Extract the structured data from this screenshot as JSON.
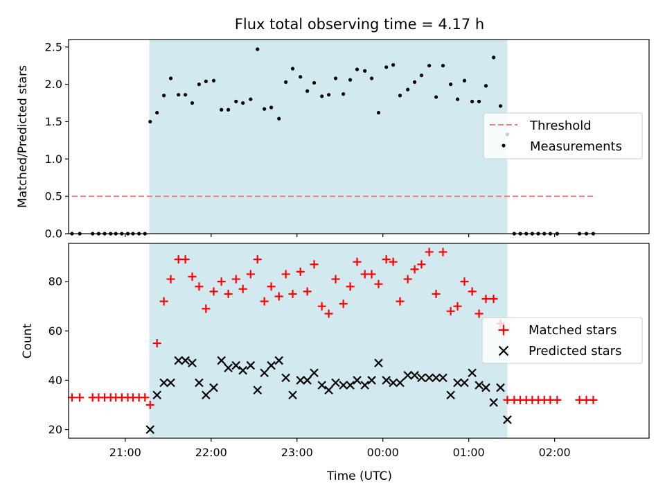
{
  "chart_data": {
    "title": "Flux total observing time = 4.17 h",
    "xlabel": "Time (UTC)",
    "x_unit": "hours UTC (times after midnight written as 24 + hour)",
    "xlim": [
      20.34,
      27.1
    ],
    "x_ticks": [
      {
        "value": 21,
        "label": "21:00"
      },
      {
        "value": 22,
        "label": "22:00"
      },
      {
        "value": 23,
        "label": "23:00"
      },
      {
        "value": 24,
        "label": "00:00"
      },
      {
        "value": 25,
        "label": "01:00"
      },
      {
        "value": 26,
        "label": "02:00"
      }
    ],
    "observing_window": {
      "start": 21.28,
      "end": 25.45,
      "color": "#d2e9f0"
    },
    "panels": [
      {
        "type": "scatter",
        "ylabel": "Matched/Predicted stars",
        "ylim": [
          0,
          2.6
        ],
        "y_ticks": [
          "0.0",
          "0.5",
          "1.0",
          "1.5",
          "2.0",
          "2.5"
        ],
        "legend_position": "center-right",
        "series": [
          {
            "name": "Threshold",
            "kind": "dashed-line",
            "color": "#f08080",
            "x": [
              20.38,
              26.45
            ],
            "values": [
              0.5,
              0.5
            ]
          },
          {
            "name": "Measurements",
            "kind": "dot",
            "color": "#000000",
            "x": [
              20.38,
              20.47,
              20.62,
              20.69,
              20.76,
              20.83,
              20.89,
              20.96,
              21.03,
              21.09,
              21.16,
              21.23,
              21.29,
              21.37,
              21.45,
              21.53,
              21.62,
              21.7,
              21.78,
              21.86,
              21.94,
              22.03,
              22.12,
              22.2,
              22.29,
              22.37,
              22.46,
              22.54,
              22.62,
              22.7,
              22.79,
              22.87,
              22.95,
              23.04,
              23.12,
              23.2,
              23.29,
              23.37,
              23.45,
              23.54,
              23.62,
              23.7,
              23.79,
              23.87,
              23.95,
              24.04,
              24.12,
              24.2,
              24.29,
              24.37,
              24.45,
              24.54,
              24.62,
              24.7,
              24.79,
              24.87,
              24.95,
              25.04,
              25.12,
              25.2,
              25.29,
              25.37,
              25.45,
              25.53,
              25.6,
              25.67,
              25.74,
              25.81,
              25.88,
              25.95,
              26.03,
              26.29,
              26.37,
              26.45
            ],
            "values": [
              0,
              0,
              0,
              0,
              0,
              0,
              0,
              0,
              0,
              0,
              0,
              0,
              1.5,
              1.62,
              1.85,
              2.08,
              1.86,
              1.86,
              1.75,
              2.0,
              2.04,
              2.05,
              1.66,
              1.66,
              1.77,
              1.75,
              1.8,
              2.47,
              1.67,
              1.69,
              1.54,
              2.03,
              2.21,
              2.1,
              1.91,
              2.02,
              1.84,
              1.86,
              2.08,
              1.87,
              2.06,
              2.2,
              2.18,
              2.08,
              1.62,
              2.23,
              2.26,
              1.85,
              1.93,
              2.03,
              2.12,
              2.25,
              1.83,
              2.25,
              2.0,
              1.8,
              2.05,
              1.77,
              1.77,
              1.98,
              2.36,
              1.71,
              1.33,
              0,
              0,
              0,
              0,
              0,
              0,
              0,
              0,
              0,
              0,
              0
            ]
          }
        ]
      },
      {
        "type": "scatter",
        "ylabel": "Count",
        "ylim": [
          16.5,
          95.5
        ],
        "y_ticks": [
          "20",
          "40",
          "60",
          "80"
        ],
        "legend_position": "center-right",
        "series": [
          {
            "name": "Matched stars",
            "kind": "plus",
            "color": "#ff0000",
            "x": [
              20.38,
              20.47,
              20.62,
              20.69,
              20.76,
              20.83,
              20.89,
              20.96,
              21.03,
              21.09,
              21.16,
              21.23,
              21.29,
              21.37,
              21.45,
              21.53,
              21.62,
              21.7,
              21.78,
              21.86,
              21.94,
              22.03,
              22.12,
              22.2,
              22.29,
              22.37,
              22.46,
              22.54,
              22.62,
              22.7,
              22.79,
              22.87,
              22.95,
              23.04,
              23.12,
              23.2,
              23.29,
              23.37,
              23.45,
              23.54,
              23.62,
              23.7,
              23.79,
              23.87,
              23.95,
              24.04,
              24.12,
              24.2,
              24.29,
              24.37,
              24.45,
              24.54,
              24.62,
              24.7,
              24.79,
              24.87,
              24.95,
              25.04,
              25.12,
              25.2,
              25.29,
              25.37,
              25.45,
              25.53,
              25.6,
              25.67,
              25.74,
              25.81,
              25.88,
              25.95,
              26.03,
              26.29,
              26.37,
              26.45
            ],
            "values": [
              33,
              33,
              33,
              33,
              33,
              33,
              33,
              33,
              33,
              33,
              33,
              33,
              30,
              55,
              72,
              81,
              89,
              89,
              82,
              78,
              69,
              76,
              80,
              75,
              81,
              77,
              83,
              89,
              72,
              78,
              74,
              83,
              75,
              84,
              76,
              87,
              70,
              67,
              81,
              71,
              78,
              88,
              83,
              83,
              79,
              89,
              88,
              72,
              81,
              85,
              87,
              92,
              75,
              92,
              68,
              70,
              80,
              76,
              67,
              73,
              73,
              63,
              32,
              32,
              32,
              32,
              32,
              32,
              32,
              32,
              32,
              32,
              32,
              32
            ]
          },
          {
            "name": "Predicted stars",
            "kind": "x",
            "color": "#000000",
            "x": [
              21.29,
              21.37,
              21.45,
              21.53,
              21.62,
              21.7,
              21.78,
              21.86,
              21.94,
              22.03,
              22.12,
              22.2,
              22.29,
              22.37,
              22.46,
              22.54,
              22.62,
              22.7,
              22.79,
              22.87,
              22.95,
              23.04,
              23.12,
              23.2,
              23.29,
              23.37,
              23.45,
              23.54,
              23.62,
              23.7,
              23.79,
              23.87,
              23.95,
              24.04,
              24.12,
              24.2,
              24.29,
              24.37,
              24.45,
              24.54,
              24.62,
              24.7,
              24.79,
              24.87,
              24.95,
              25.04,
              25.12,
              25.2,
              25.29,
              25.37,
              25.45
            ],
            "values": [
              20,
              34,
              39,
              39,
              48,
              48,
              47,
              39,
              34,
              37,
              48,
              45,
              46,
              44,
              46,
              36,
              43,
              46,
              48,
              41,
              34,
              40,
              40,
              43,
              38,
              36,
              39,
              38,
              38,
              40,
              38,
              40,
              47,
              40,
              39,
              39,
              42,
              42,
              41,
              41,
              41,
              41,
              34,
              39,
              39,
              43,
              38,
              37,
              31,
              37,
              24
            ]
          }
        ]
      }
    ]
  }
}
